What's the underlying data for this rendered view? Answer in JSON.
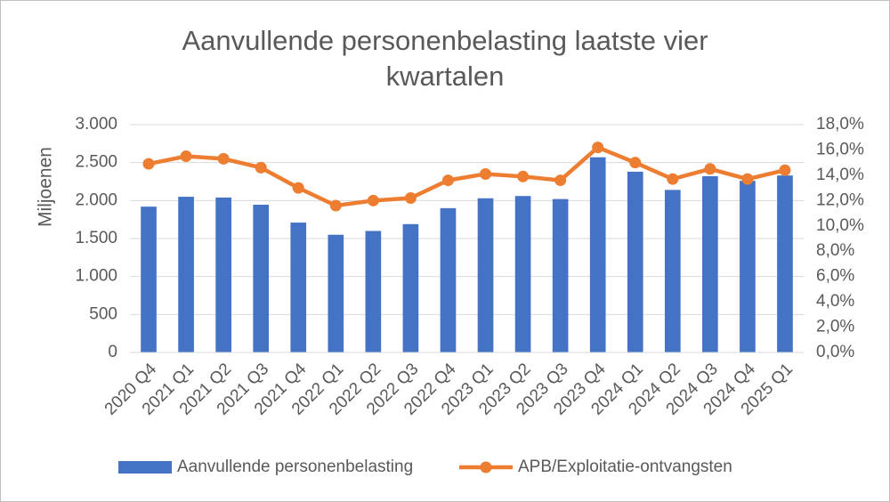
{
  "chart_data": {
    "type": "bar_line",
    "title": "Aanvullende personenbelasting laatste vier kwartalen",
    "ylabel": "Miljoenen",
    "categories": [
      "2020 Q4",
      "2021 Q1",
      "2021 Q2",
      "2021 Q3",
      "2021 Q4",
      "2022 Q1",
      "2022 Q2",
      "2022 Q3",
      "2022 Q4",
      "2023 Q1",
      "2023 Q2",
      "2023 Q3",
      "2023 Q4",
      "2024 Q1",
      "2024 Q2",
      "2024 Q3",
      "2024 Q4",
      "2025 Q1"
    ],
    "series": [
      {
        "name": "Aanvullende personenbelasting",
        "type": "bar",
        "color": "#4472c4",
        "values": [
          1920,
          2050,
          2040,
          1945,
          1710,
          1550,
          1600,
          1690,
          1900,
          2030,
          2060,
          2020,
          2570,
          2380,
          2140,
          2320,
          2260,
          2330
        ]
      },
      {
        "name": "APB/Exploitatie-ontvangsten",
        "type": "line",
        "axis": "y2",
        "color": "#ed7d31",
        "values": [
          14.9,
          15.5,
          15.3,
          14.6,
          13.0,
          11.6,
          12.0,
          12.2,
          13.6,
          14.1,
          13.9,
          13.6,
          16.2,
          15.0,
          13.7,
          14.5,
          13.7,
          14.4
        ]
      }
    ],
    "ylim": [
      0,
      3000
    ],
    "yticks": [
      0,
      500,
      {
        "value": 1000,
        "label": "1.000"
      },
      {
        "value": 1500,
        "label": "1.500"
      },
      {
        "value": 2000,
        "label": "2.000"
      },
      {
        "value": 2500,
        "label": "2.500"
      },
      {
        "value": 3000,
        "label": "3.000"
      }
    ],
    "y2lim": [
      0,
      18
    ],
    "y2ticks": [
      {
        "value": 0,
        "label": "0,0%"
      },
      {
        "value": 2,
        "label": "2,0%"
      },
      {
        "value": 4,
        "label": "4,0%"
      },
      {
        "value": 6,
        "label": "6,0%"
      },
      {
        "value": 8,
        "label": "8,0%"
      },
      {
        "value": 10,
        "label": "10,0%"
      },
      {
        "value": 12,
        "label": "12,0%"
      },
      {
        "value": 14,
        "label": "14,0%"
      },
      {
        "value": 16,
        "label": "16,0%"
      },
      {
        "value": 18,
        "label": "18,0%"
      }
    ],
    "grid": true,
    "legend": "bottom"
  }
}
